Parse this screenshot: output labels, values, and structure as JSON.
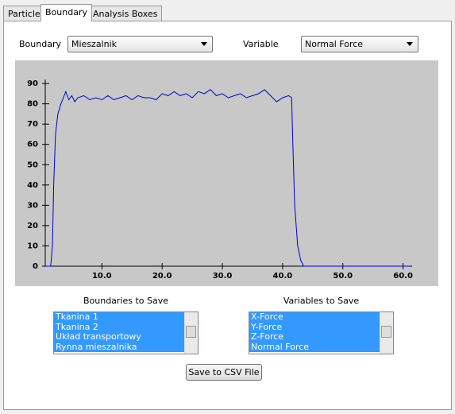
{
  "tabs": [
    "Particle",
    "Boundary",
    "Analysis Boxes"
  ],
  "boundary_label": "Boundary",
  "boundary_select": "Mieszalnik",
  "variable_label": "Variable",
  "variable_select": "Normal Force",
  "chart_data": {
    "type": "line",
    "color": "#0000cc",
    "x": [
      0.6,
      1.5,
      1.8,
      2.0,
      2.3,
      2.7,
      3.2,
      3.6,
      4,
      4.5,
      5,
      5.5,
      6,
      7,
      8,
      9,
      10,
      11,
      12,
      13,
      14,
      15,
      16,
      17,
      18,
      19,
      20,
      21,
      22,
      23,
      24,
      25,
      26,
      27,
      28,
      29,
      30,
      31,
      32,
      33,
      34,
      35,
      36,
      37,
      38,
      39,
      40,
      41,
      41.5,
      41.7,
      42,
      42.5,
      43,
      43.5,
      61
    ],
    "values": [
      0,
      0,
      10,
      40,
      65,
      75,
      80,
      83,
      86,
      82,
      84,
      81,
      83,
      84,
      82,
      83,
      82,
      84,
      82,
      83,
      84,
      82,
      84,
      83,
      83,
      82,
      85,
      84,
      86,
      84,
      85,
      83,
      86,
      85,
      87,
      84,
      85,
      83,
      84,
      85,
      83,
      84,
      85,
      87,
      84,
      81,
      83,
      84,
      83,
      60,
      30,
      10,
      3,
      0,
      0
    ],
    "xlim": [
      0.6,
      61.5
    ],
    "ylim": [
      0,
      92
    ],
    "xticks": [
      {
        "value": 10,
        "label": "10.0"
      },
      {
        "value": 20,
        "label": "20.0"
      },
      {
        "value": 30,
        "label": "30.0"
      },
      {
        "value": 40,
        "label": "40.0"
      },
      {
        "value": 50,
        "label": "50.0"
      },
      {
        "value": 60,
        "label": "60.0"
      }
    ],
    "yticks": [
      0,
      10,
      20,
      30,
      40,
      50,
      60,
      70,
      80,
      90
    ]
  },
  "boundaries_header": "Boundaries to Save",
  "boundaries_list": [
    "Tkanina 1",
    "Tkanina 2",
    "Układ transportowy",
    "Rynna mieszalnika"
  ],
  "variables_header": "Variables to Save",
  "variables_list": [
    "X-Force",
    "Y-Force",
    "Z-Force",
    "Normal Force"
  ],
  "save_button": "Save to CSV File"
}
